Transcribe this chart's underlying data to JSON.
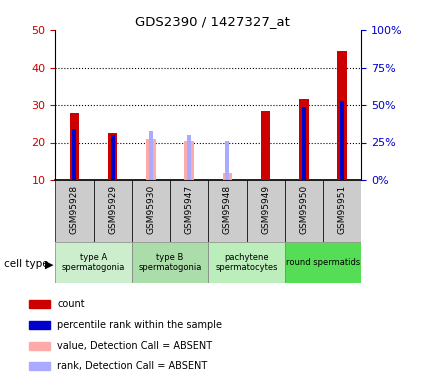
{
  "title": "GDS2390 / 1427327_at",
  "samples": [
    "GSM95928",
    "GSM95929",
    "GSM95930",
    "GSM95947",
    "GSM95948",
    "GSM95949",
    "GSM95950",
    "GSM95951"
  ],
  "count_values": [
    28.0,
    22.5,
    null,
    null,
    null,
    28.5,
    31.5,
    44.5
  ],
  "rank_values": [
    23.5,
    22.0,
    null,
    null,
    null,
    null,
    29.5,
    31.0
  ],
  "absent_count_values": [
    null,
    null,
    21.0,
    20.5,
    12.0,
    null,
    null,
    null
  ],
  "absent_rank_values": [
    null,
    null,
    23.0,
    22.0,
    20.5,
    null,
    null,
    null
  ],
  "ylim": [
    10,
    50
  ],
  "y2lim": [
    0,
    100
  ],
  "yticks": [
    10,
    20,
    30,
    40,
    50
  ],
  "y2ticks": [
    0,
    25,
    50,
    75,
    100
  ],
  "y2ticklabels": [
    "0%",
    "25%",
    "50%",
    "75%",
    "100%"
  ],
  "dotted_lines": [
    20,
    30,
    40
  ],
  "count_color": "#cc0000",
  "rank_color": "#0000cc",
  "absent_count_color": "#ffaaaa",
  "absent_rank_color": "#aaaaff",
  "tick_label_color": "#cc0000",
  "y2_label_color": "#0000cc",
  "count_bar_width": 0.25,
  "rank_bar_width": 0.1,
  "bar_bottom": 10,
  "cell_groups": [
    {
      "label": "type A\nspermatogonia",
      "cols": [
        0,
        1
      ],
      "color": "#cceecc"
    },
    {
      "label": "type B\nspermatogonia",
      "cols": [
        2,
        3
      ],
      "color": "#aaddaa"
    },
    {
      "label": "pachytene\nspermatocytes",
      "cols": [
        4,
        5
      ],
      "color": "#bbeebb"
    },
    {
      "label": "round spermatids",
      "cols": [
        6,
        7
      ],
      "color": "#55dd55"
    }
  ],
  "sample_box_color": "#cccccc",
  "legend_items": [
    {
      "label": "count",
      "color": "#cc0000"
    },
    {
      "label": "percentile rank within the sample",
      "color": "#0000cc"
    },
    {
      "label": "value, Detection Call = ABSENT",
      "color": "#ffaaaa"
    },
    {
      "label": "rank, Detection Call = ABSENT",
      "color": "#aaaaff"
    }
  ]
}
